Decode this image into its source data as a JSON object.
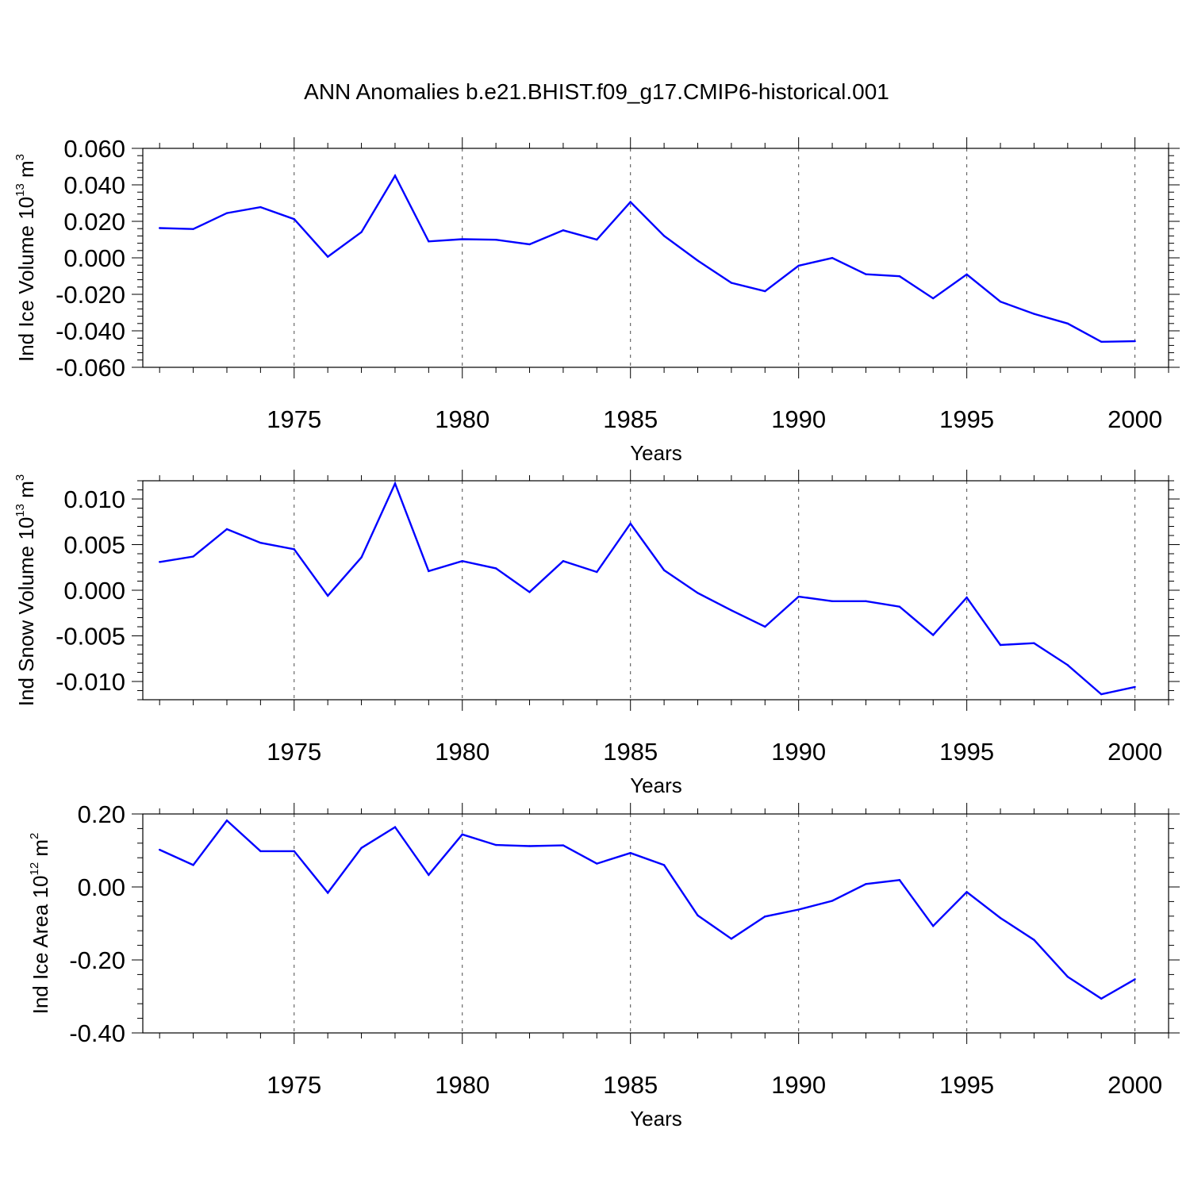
{
  "title": "ANN Anomalies b.e21.BHIST.f09_g17.CMIP6-historical.001",
  "colors": {
    "series": "#0000ff",
    "axis": "#000000",
    "grid": "#000000"
  },
  "chart_data": [
    {
      "type": "line",
      "ylabel": {
        "text": "Ind Ice Volume 10",
        "exp": "13",
        "unit": " m",
        "unit_exp": "3"
      },
      "xlabel": "Years",
      "xlim": [
        1970.5,
        2001
      ],
      "ylim": [
        -0.06,
        0.06
      ],
      "xticks": [
        1975,
        1980,
        1985,
        1990,
        1995,
        2000
      ],
      "xtick_labels": [
        "1975",
        "1980",
        "1985",
        "1990",
        "1995",
        "2000"
      ],
      "yticks": [
        -0.06,
        -0.04,
        -0.02,
        0.0,
        0.02,
        0.04,
        0.06
      ],
      "ytick_labels": [
        "-0.060",
        "-0.040",
        "-0.020",
        "0.000",
        "0.020",
        "0.040",
        "0.060"
      ],
      "grid": "vertical dashed at major x ticks",
      "x": [
        1971,
        1972,
        1973,
        1974,
        1975,
        1976,
        1977,
        1978,
        1979,
        1980,
        1981,
        1982,
        1983,
        1984,
        1985,
        1986,
        1987,
        1988,
        1989,
        1990,
        1991,
        1992,
        1993,
        1994,
        1995,
        1996,
        1997,
        1998,
        1999,
        2000
      ],
      "y": [
        0.0163,
        0.0158,
        0.0245,
        0.0278,
        0.0212,
        0.0006,
        0.0141,
        0.045,
        0.009,
        0.0102,
        0.0099,
        0.0074,
        0.0151,
        0.01,
        0.0306,
        0.012,
        -0.0015,
        -0.0137,
        -0.0183,
        -0.0043,
        -0.0001,
        -0.009,
        -0.0101,
        -0.0222,
        -0.0091,
        -0.024,
        -0.0307,
        -0.036,
        -0.046,
        -0.0457
      ]
    },
    {
      "type": "line",
      "ylabel": {
        "text": "Ind Snow Volume 10",
        "exp": "13",
        "unit": " m",
        "unit_exp": "3"
      },
      "xlabel": "Years",
      "xlim": [
        1970.5,
        2001
      ],
      "ylim": [
        -0.012,
        0.012
      ],
      "xticks": [
        1975,
        1980,
        1985,
        1990,
        1995,
        2000
      ],
      "xtick_labels": [
        "1975",
        "1980",
        "1985",
        "1990",
        "1995",
        "2000"
      ],
      "yticks": [
        -0.01,
        -0.005,
        0.0,
        0.005,
        0.01
      ],
      "ytick_labels": [
        "-0.010",
        "-0.005",
        "0.000",
        "0.005",
        "0.010"
      ],
      "grid": "vertical dashed at major x ticks",
      "x": [
        1971,
        1972,
        1973,
        1974,
        1975,
        1976,
        1977,
        1978,
        1979,
        1980,
        1981,
        1982,
        1983,
        1984,
        1985,
        1986,
        1987,
        1988,
        1989,
        1990,
        1991,
        1992,
        1993,
        1994,
        1995,
        1996,
        1997,
        1998,
        1999,
        2000
      ],
      "y": [
        0.0031,
        0.0037,
        0.0067,
        0.0052,
        0.0045,
        -0.0006,
        0.0036,
        0.0117,
        0.0021,
        0.0032,
        0.0024,
        -0.0002,
        0.0032,
        0.002,
        0.0073,
        0.0022,
        -0.0003,
        -0.0022,
        -0.004,
        -0.0007,
        -0.0012,
        -0.0012,
        -0.0018,
        -0.0049,
        -0.0008,
        -0.006,
        -0.0058,
        -0.0082,
        -0.0114,
        -0.0106
      ]
    },
    {
      "type": "line",
      "ylabel": {
        "text": "Ind Ice Area 10",
        "exp": "12",
        "unit": " m",
        "unit_exp": "2"
      },
      "xlabel": "Years",
      "xlim": [
        1970.5,
        2001
      ],
      "ylim": [
        -0.4,
        0.2
      ],
      "xticks": [
        1975,
        1980,
        1985,
        1990,
        1995,
        2000
      ],
      "xtick_labels": [
        "1975",
        "1980",
        "1985",
        "1990",
        "1995",
        "2000"
      ],
      "yticks": [
        -0.4,
        -0.2,
        0.0,
        0.2
      ],
      "ytick_labels": [
        "-0.40",
        "-0.20",
        "0.00",
        "0.20"
      ],
      "grid": "vertical dashed at major x ticks",
      "x": [
        1971,
        1972,
        1973,
        1974,
        1975,
        1976,
        1977,
        1978,
        1979,
        1980,
        1981,
        1982,
        1983,
        1984,
        1985,
        1986,
        1987,
        1988,
        1989,
        1990,
        1991,
        1992,
        1993,
        1994,
        1995,
        1996,
        1997,
        1998,
        1999,
        2000
      ],
      "y": [
        0.102,
        0.06,
        0.182,
        0.098,
        0.098,
        -0.016,
        0.107,
        0.164,
        0.033,
        0.144,
        0.115,
        0.112,
        0.114,
        0.064,
        0.093,
        0.06,
        -0.078,
        -0.142,
        -0.081,
        -0.062,
        -0.038,
        0.008,
        0.019,
        -0.107,
        -0.014,
        -0.085,
        -0.145,
        -0.246,
        -0.306,
        -0.253
      ]
    }
  ]
}
